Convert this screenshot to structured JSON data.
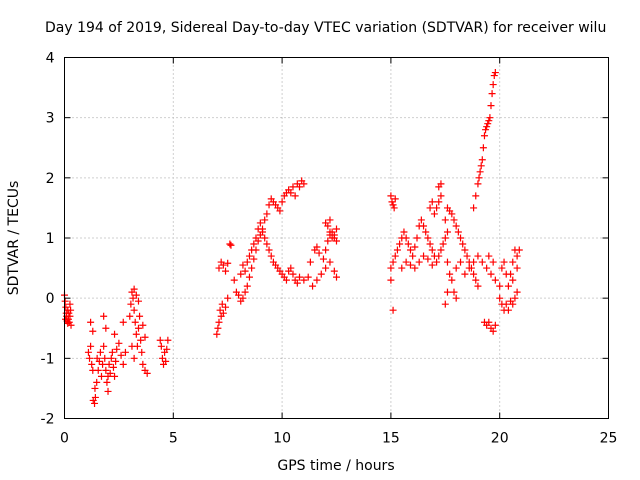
{
  "chart_data": {
    "type": "scatter",
    "title": "Day 194 of 2019, Sidereal Day-to-day VTEC variation (SDTVAR) for receiver wilu",
    "xlabel": "GPS time / hours",
    "ylabel": "SDTVAR / TECUs",
    "xlim": [
      0,
      25
    ],
    "ylim": [
      -2,
      4
    ],
    "xticks": [
      "0",
      "5",
      "10",
      "15",
      "20",
      "25"
    ],
    "yticks": [
      "-2",
      "-1",
      "0",
      "1",
      "2",
      "3",
      "4"
    ],
    "grid": true,
    "marker": "+",
    "color": "#ff0000",
    "series": [
      {
        "name": "SDTVAR",
        "points": [
          [
            0.0,
            0.05
          ],
          [
            0.03,
            -0.05
          ],
          [
            0.06,
            -0.15
          ],
          [
            0.08,
            -0.25
          ],
          [
            0.1,
            -0.3
          ],
          [
            0.12,
            -0.38
          ],
          [
            0.15,
            -0.42
          ],
          [
            0.18,
            -0.35
          ],
          [
            0.2,
            -0.25
          ],
          [
            0.22,
            -0.4
          ],
          [
            0.25,
            -0.3
          ],
          [
            0.28,
            -0.2
          ],
          [
            0.3,
            -0.45
          ],
          [
            0.05,
            -0.35
          ],
          [
            0.15,
            -0.2
          ],
          [
            0.25,
            -0.1
          ],
          [
            1.1,
            -0.9
          ],
          [
            1.15,
            -1.0
          ],
          [
            1.2,
            -0.8
          ],
          [
            1.25,
            -1.1
          ],
          [
            1.3,
            -1.2
          ],
          [
            1.32,
            -1.7
          ],
          [
            1.38,
            -1.75
          ],
          [
            1.42,
            -1.65
          ],
          [
            1.48,
            -1.4
          ],
          [
            1.5,
            -1.0
          ],
          [
            1.55,
            -1.2
          ],
          [
            1.6,
            -1.05
          ],
          [
            1.65,
            -0.9
          ],
          [
            1.7,
            -1.3
          ],
          [
            1.75,
            -1.1
          ],
          [
            1.8,
            -0.8
          ],
          [
            1.85,
            -1.0
          ],
          [
            1.9,
            -1.2
          ],
          [
            1.95,
            -1.4
          ],
          [
            2.0,
            -1.3
          ],
          [
            2.05,
            -1.1
          ],
          [
            2.1,
            -1.25
          ],
          [
            2.15,
            -1.0
          ],
          [
            2.2,
            -0.9
          ],
          [
            2.25,
            -1.15
          ],
          [
            2.3,
            -1.3
          ],
          [
            2.35,
            -1.05
          ],
          [
            2.4,
            -0.85
          ],
          [
            2.5,
            -0.75
          ],
          [
            2.6,
            -0.95
          ],
          [
            2.7,
            -1.1
          ],
          [
            2.8,
            -0.9
          ],
          [
            1.2,
            -0.4
          ],
          [
            1.3,
            -0.55
          ],
          [
            1.8,
            -0.3
          ],
          [
            1.9,
            -0.5
          ],
          [
            2.3,
            -0.6
          ],
          [
            2.7,
            -0.4
          ],
          [
            1.4,
            -1.5
          ],
          [
            2.0,
            -1.55
          ],
          [
            3.0,
            -0.3
          ],
          [
            3.05,
            -0.1
          ],
          [
            3.1,
            0.1
          ],
          [
            3.15,
            0.0
          ],
          [
            3.2,
            -0.2
          ],
          [
            3.25,
            -0.4
          ],
          [
            3.3,
            -0.6
          ],
          [
            3.35,
            -0.8
          ],
          [
            3.4,
            -0.5
          ],
          [
            3.45,
            -0.3
          ],
          [
            3.5,
            -0.7
          ],
          [
            3.55,
            -0.9
          ],
          [
            3.6,
            -1.1
          ],
          [
            3.7,
            -1.2
          ],
          [
            3.8,
            -1.25
          ],
          [
            3.2,
            0.15
          ],
          [
            3.3,
            0.05
          ],
          [
            3.4,
            -0.05
          ],
          [
            3.6,
            -0.45
          ],
          [
            3.7,
            -0.65
          ],
          [
            3.1,
            -0.8
          ],
          [
            3.2,
            -1.0
          ],
          [
            4.4,
            -0.7
          ],
          [
            4.45,
            -0.8
          ],
          [
            4.5,
            -1.0
          ],
          [
            4.55,
            -1.1
          ],
          [
            4.6,
            -0.9
          ],
          [
            4.65,
            -1.05
          ],
          [
            4.7,
            -0.85
          ],
          [
            4.75,
            -0.7
          ],
          [
            7.0,
            -0.6
          ],
          [
            7.05,
            -0.5
          ],
          [
            7.1,
            -0.4
          ],
          [
            7.15,
            -0.2
          ],
          [
            7.2,
            -0.3
          ],
          [
            7.25,
            -0.1
          ],
          [
            7.3,
            -0.25
          ],
          [
            7.4,
            -0.15
          ],
          [
            7.5,
            0.0
          ],
          [
            7.1,
            0.5
          ],
          [
            7.2,
            0.6
          ],
          [
            7.3,
            0.55
          ],
          [
            7.4,
            0.45
          ],
          [
            7.5,
            0.58
          ],
          [
            7.6,
            0.9
          ],
          [
            7.65,
            0.88
          ],
          [
            7.8,
            0.3
          ],
          [
            7.9,
            0.1
          ],
          [
            8.0,
            0.05
          ],
          [
            8.1,
            -0.05
          ],
          [
            8.2,
            0.0
          ],
          [
            8.3,
            0.1
          ],
          [
            8.4,
            0.2
          ],
          [
            8.5,
            0.35
          ],
          [
            8.6,
            0.5
          ],
          [
            8.7,
            0.65
          ],
          [
            8.8,
            0.8
          ],
          [
            8.9,
            0.95
          ],
          [
            9.0,
            1.05
          ],
          [
            9.1,
            1.15
          ],
          [
            9.2,
            1.3
          ],
          [
            9.3,
            1.4
          ],
          [
            9.4,
            1.55
          ],
          [
            9.5,
            1.65
          ],
          [
            9.6,
            1.6
          ],
          [
            9.7,
            1.55
          ],
          [
            9.8,
            1.5
          ],
          [
            9.9,
            1.45
          ],
          [
            10.0,
            1.6
          ],
          [
            10.1,
            1.7
          ],
          [
            10.2,
            1.75
          ],
          [
            8.1,
            0.4
          ],
          [
            8.2,
            0.55
          ],
          [
            8.3,
            0.45
          ],
          [
            8.4,
            0.6
          ],
          [
            8.5,
            0.7
          ],
          [
            8.6,
            0.8
          ],
          [
            8.7,
            0.9
          ],
          [
            8.8,
            1.0
          ],
          [
            8.9,
            1.15
          ],
          [
            9.0,
            1.25
          ],
          [
            9.1,
            1.1
          ],
          [
            9.2,
            1.0
          ],
          [
            9.3,
            0.9
          ],
          [
            9.4,
            0.8
          ],
          [
            9.5,
            0.7
          ],
          [
            9.6,
            0.6
          ],
          [
            9.7,
            0.55
          ],
          [
            9.8,
            0.5
          ],
          [
            9.9,
            0.45
          ],
          [
            10.0,
            0.4
          ],
          [
            10.1,
            0.35
          ],
          [
            10.2,
            0.3
          ],
          [
            10.3,
            0.45
          ],
          [
            10.4,
            0.5
          ],
          [
            10.5,
            0.4
          ],
          [
            10.6,
            0.3
          ],
          [
            10.7,
            0.25
          ],
          [
            10.8,
            0.35
          ],
          [
            10.3,
            1.8
          ],
          [
            10.5,
            1.85
          ],
          [
            10.7,
            1.9
          ],
          [
            10.9,
            1.95
          ],
          [
            11.0,
            1.9
          ],
          [
            10.4,
            1.75
          ],
          [
            10.6,
            1.7
          ],
          [
            10.8,
            1.85
          ],
          [
            11.0,
            0.3
          ],
          [
            11.2,
            0.35
          ],
          [
            11.4,
            0.2
          ],
          [
            11.6,
            0.3
          ],
          [
            11.8,
            0.4
          ],
          [
            12.0,
            0.5
          ],
          [
            12.2,
            0.6
          ],
          [
            12.4,
            0.45
          ],
          [
            12.5,
            0.35
          ],
          [
            11.5,
            0.8
          ],
          [
            11.6,
            0.85
          ],
          [
            11.7,
            0.75
          ],
          [
            12.0,
            0.8
          ],
          [
            12.1,
            0.95
          ],
          [
            12.2,
            1.05
          ],
          [
            12.3,
            1.1
          ],
          [
            12.4,
            1.0
          ],
          [
            12.5,
            0.95
          ],
          [
            11.3,
            0.6
          ],
          [
            11.9,
            0.65
          ],
          [
            12.0,
            1.25
          ],
          [
            12.1,
            1.2
          ],
          [
            12.2,
            1.1
          ],
          [
            12.3,
            1.0
          ],
          [
            12.4,
            1.05
          ],
          [
            12.5,
            1.15
          ],
          [
            12.2,
            1.3
          ],
          [
            15.0,
            1.7
          ],
          [
            15.05,
            1.6
          ],
          [
            15.1,
            1.55
          ],
          [
            15.15,
            1.5
          ],
          [
            15.2,
            1.65
          ],
          [
            15.0,
            0.5
          ],
          [
            15.1,
            0.6
          ],
          [
            15.2,
            0.7
          ],
          [
            15.3,
            0.8
          ],
          [
            15.4,
            0.9
          ],
          [
            15.5,
            1.0
          ],
          [
            15.6,
            1.1
          ],
          [
            15.7,
            1.0
          ],
          [
            15.8,
            0.9
          ],
          [
            15.9,
            0.8
          ],
          [
            16.0,
            0.7
          ],
          [
            16.1,
            0.85
          ],
          [
            16.2,
            1.0
          ],
          [
            16.3,
            1.2
          ],
          [
            16.4,
            1.3
          ],
          [
            16.5,
            1.2
          ],
          [
            16.6,
            1.1
          ],
          [
            16.7,
            1.0
          ],
          [
            16.8,
            0.9
          ],
          [
            16.9,
            0.8
          ],
          [
            17.0,
            0.7
          ],
          [
            17.1,
            0.6
          ],
          [
            17.2,
            0.7
          ],
          [
            17.3,
            0.8
          ],
          [
            17.4,
            0.9
          ],
          [
            17.5,
            1.0
          ],
          [
            17.6,
            1.1
          ],
          [
            15.5,
            0.5
          ],
          [
            15.7,
            0.6
          ],
          [
            15.9,
            0.55
          ],
          [
            16.1,
            0.5
          ],
          [
            16.3,
            0.6
          ],
          [
            16.5,
            0.7
          ],
          [
            16.7,
            0.65
          ],
          [
            16.9,
            0.55
          ],
          [
            15.0,
            0.3
          ],
          [
            15.1,
            -0.2
          ],
          [
            17.0,
            1.4
          ],
          [
            17.1,
            1.5
          ],
          [
            17.2,
            1.6
          ],
          [
            17.3,
            1.7
          ],
          [
            17.2,
            1.85
          ],
          [
            17.3,
            1.9
          ],
          [
            16.8,
            1.5
          ],
          [
            16.9,
            1.6
          ],
          [
            17.5,
            1.3
          ],
          [
            17.6,
            1.5
          ],
          [
            17.7,
            1.45
          ],
          [
            17.8,
            1.4
          ],
          [
            17.9,
            1.3
          ],
          [
            18.0,
            1.2
          ],
          [
            18.1,
            1.1
          ],
          [
            18.2,
            1.0
          ],
          [
            18.3,
            0.9
          ],
          [
            18.4,
            0.8
          ],
          [
            18.5,
            0.7
          ],
          [
            18.6,
            0.6
          ],
          [
            18.7,
            0.5
          ],
          [
            18.8,
            0.4
          ],
          [
            18.9,
            0.3
          ],
          [
            19.0,
            0.2
          ],
          [
            17.6,
            0.6
          ],
          [
            17.7,
            0.4
          ],
          [
            17.8,
            0.3
          ],
          [
            17.9,
            0.1
          ],
          [
            18.0,
            0.0
          ],
          [
            17.5,
            -0.1
          ],
          [
            17.6,
            0.1
          ],
          [
            18.0,
            0.5
          ],
          [
            18.2,
            0.6
          ],
          [
            18.4,
            0.4
          ],
          [
            18.6,
            0.5
          ],
          [
            18.8,
            0.6
          ],
          [
            19.0,
            0.7
          ],
          [
            19.2,
            0.6
          ],
          [
            19.4,
            0.5
          ],
          [
            19.6,
            0.4
          ],
          [
            19.8,
            0.3
          ],
          [
            20.0,
            0.2
          ],
          [
            19.5,
            0.7
          ],
          [
            19.7,
            0.6
          ],
          [
            18.8,
            1.5
          ],
          [
            18.9,
            1.7
          ],
          [
            19.0,
            1.9
          ],
          [
            19.1,
            2.1
          ],
          [
            19.2,
            2.3
          ],
          [
            19.25,
            2.5
          ],
          [
            19.3,
            2.7
          ],
          [
            19.4,
            2.85
          ],
          [
            19.5,
            2.95
          ],
          [
            19.55,
            3.0
          ],
          [
            19.6,
            3.2
          ],
          [
            19.65,
            3.4
          ],
          [
            19.7,
            3.55
          ],
          [
            19.75,
            3.7
          ],
          [
            19.8,
            3.75
          ],
          [
            19.05,
            2.0
          ],
          [
            19.15,
            2.2
          ],
          [
            19.35,
            2.8
          ],
          [
            19.45,
            2.9
          ],
          [
            19.3,
            -0.4
          ],
          [
            19.4,
            -0.45
          ],
          [
            19.5,
            -0.4
          ],
          [
            19.6,
            -0.5
          ],
          [
            19.7,
            -0.55
          ],
          [
            19.8,
            -0.45
          ],
          [
            20.0,
            0.0
          ],
          [
            20.1,
            -0.1
          ],
          [
            20.2,
            -0.2
          ],
          [
            20.3,
            -0.1
          ],
          [
            20.4,
            0.2
          ],
          [
            20.5,
            0.4
          ],
          [
            20.6,
            0.6
          ],
          [
            20.7,
            0.8
          ],
          [
            20.8,
            0.7
          ],
          [
            20.9,
            0.8
          ],
          [
            20.8,
            0.1
          ],
          [
            20.7,
            0.0
          ],
          [
            20.6,
            -0.1
          ],
          [
            20.5,
            -0.05
          ],
          [
            20.4,
            -0.2
          ],
          [
            20.3,
            0.4
          ],
          [
            20.2,
            0.6
          ],
          [
            20.1,
            0.5
          ],
          [
            20.6,
            0.3
          ],
          [
            20.8,
            0.5
          ]
        ]
      }
    ]
  }
}
